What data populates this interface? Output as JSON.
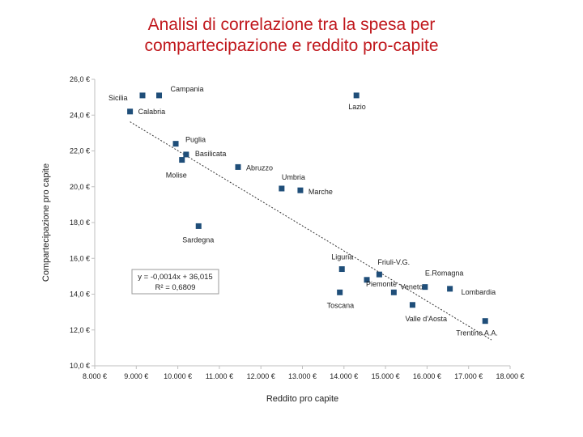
{
  "title_lines": [
    "Analisi di correlazione tra la spesa per",
    "compartecipazione e reddito pro-capite"
  ],
  "chart_data": {
    "type": "scatter",
    "title": "Analisi di correlazione tra la spesa per compartecipazione e reddito pro-capite",
    "xlabel": "Reddito pro capite",
    "ylabel": "Compartecipazione pro capite",
    "xlim": [
      8000,
      18000
    ],
    "ylim": [
      10,
      26
    ],
    "x_ticks": [
      8000,
      9000,
      10000,
      11000,
      12000,
      13000,
      14000,
      15000,
      16000,
      17000,
      18000
    ],
    "x_tick_labels": [
      "8.000 €",
      "9.000 €",
      "10.000 €",
      "11.000 €",
      "12.000 €",
      "13.000 €",
      "14.000 €",
      "15.000 €",
      "16.000 €",
      "17.000 €",
      "18.000 €"
    ],
    "y_ticks": [
      10,
      12,
      14,
      16,
      18,
      20,
      22,
      24,
      26
    ],
    "y_tick_labels": [
      "10,0 €",
      "12,0 €",
      "14,0 €",
      "16,0 €",
      "18,0 €",
      "20,0 €",
      "22,0 €",
      "24,0 €",
      "26,0 €"
    ],
    "grid": false,
    "points": [
      {
        "name": "Sicilia",
        "x": 9150,
        "y": 25.1
      },
      {
        "name": "Campania",
        "x": 9550,
        "y": 25.1
      },
      {
        "name": "Calabria",
        "x": 8850,
        "y": 24.2
      },
      {
        "name": "Lazio",
        "x": 14300,
        "y": 25.1
      },
      {
        "name": "Puglia",
        "x": 9950,
        "y": 22.4
      },
      {
        "name": "Basilicata",
        "x": 10200,
        "y": 21.8
      },
      {
        "name": "Molise",
        "x": 10100,
        "y": 21.5
      },
      {
        "name": "Abruzzo",
        "x": 11450,
        "y": 21.1
      },
      {
        "name": "Umbria",
        "x": 12500,
        "y": 19.9
      },
      {
        "name": "Marche",
        "x": 12950,
        "y": 19.8
      },
      {
        "name": "Sardegna",
        "x": 10500,
        "y": 17.8
      },
      {
        "name": "Liguria",
        "x": 13950,
        "y": 15.4
      },
      {
        "name": "Friuli-V.G.",
        "x": 14850,
        "y": 15.1
      },
      {
        "name": "Piemonte",
        "x": 14550,
        "y": 14.8
      },
      {
        "name": "Toscana",
        "x": 13900,
        "y": 14.1
      },
      {
        "name": "Veneto",
        "x": 15200,
        "y": 14.1
      },
      {
        "name": "E.Romagna",
        "x": 15950,
        "y": 14.4
      },
      {
        "name": "Lombardia",
        "x": 16550,
        "y": 14.3
      },
      {
        "name": "Valle d'Aosta",
        "x": 15650,
        "y": 13.4
      },
      {
        "name": "Trentino A.A.",
        "x": 17400,
        "y": 12.5
      }
    ],
    "trendline": {
      "slope": -0.0014,
      "intercept": 36.015,
      "r2": 0.6809
    },
    "equation_lines": [
      "y = -0,0014x + 36,015",
      "R² = 0,6809"
    ]
  },
  "colors": {
    "title": "#c0171c",
    "marker": "#1f4e79",
    "axis": "#bfbfbf",
    "trend": "#333333"
  }
}
